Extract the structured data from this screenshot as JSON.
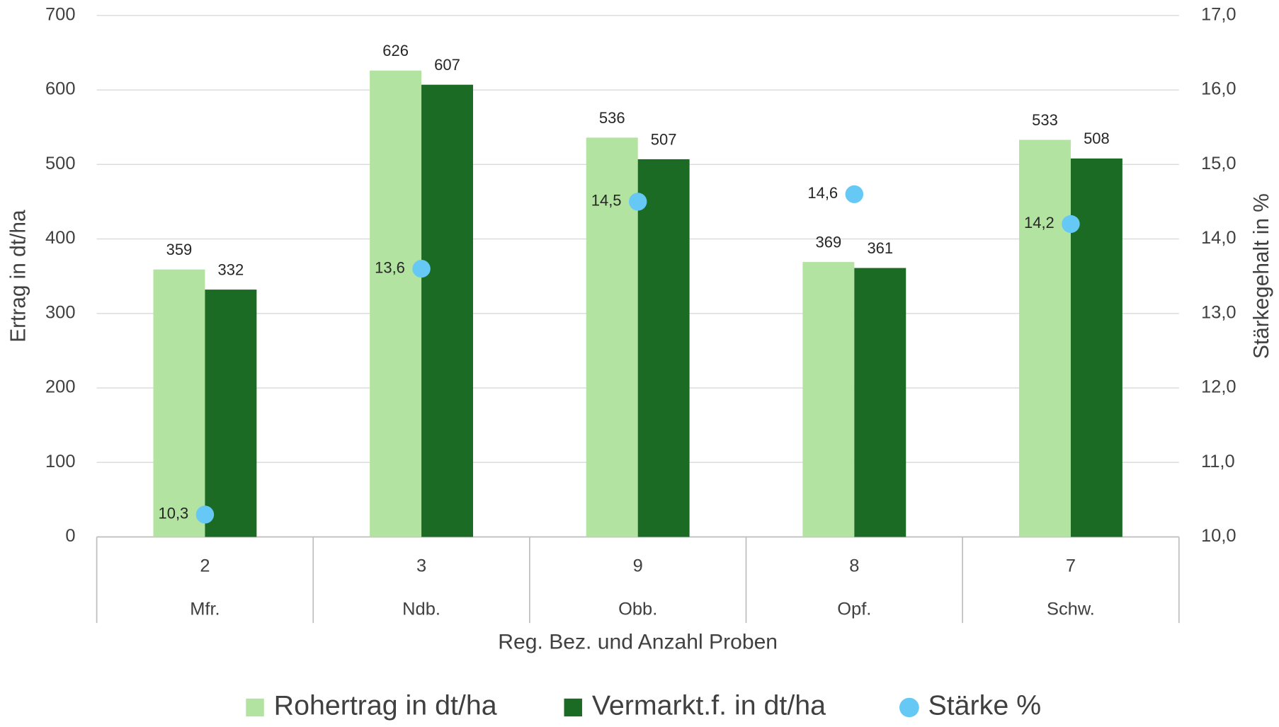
{
  "chart_data": {
    "type": "bar",
    "categories": [
      "2",
      "3",
      "9",
      "8",
      "7"
    ],
    "category_groups": [
      "Mfr.",
      "Ndb.",
      "Obb.",
      "Opf.",
      "Schw."
    ],
    "x_label": "Reg. Bez. und Anzahl Proben",
    "y_label": "Ertrag in dt/ha",
    "y2_label": "Stärkegehalt in %",
    "ylim": [
      0,
      700
    ],
    "yticks": [
      0,
      100,
      200,
      300,
      400,
      500,
      600,
      700
    ],
    "y2lim": [
      10,
      17
    ],
    "y2ticks": [
      {
        "value": 10,
        "label": "10,0"
      },
      {
        "value": 11,
        "label": "11,0"
      },
      {
        "value": 12,
        "label": "12,0"
      },
      {
        "value": 13,
        "label": "13,0"
      },
      {
        "value": 14,
        "label": "14,0"
      },
      {
        "value": 15,
        "label": "15,0"
      },
      {
        "value": 16,
        "label": "16,0"
      },
      {
        "value": 17,
        "label": "17,0"
      }
    ],
    "grid": true,
    "legend": "bottom",
    "series": [
      {
        "name": "Rohertrag in dt/ha",
        "color": "#b3e3a0",
        "values": [
          359,
          626,
          536,
          369,
          533
        ]
      },
      {
        "name": "Vermarkt.f. in dt/ha",
        "color": "#1b6b25",
        "values": [
          332,
          607,
          507,
          361,
          508
        ]
      },
      {
        "name": "Stärke %",
        "color": "#66c9f5",
        "type": "scatter",
        "axis": "y2",
        "values": [
          10.3,
          13.6,
          14.5,
          14.6,
          14.2
        ],
        "value_labels": [
          "10,3",
          "13,6",
          "14,5",
          "14,6",
          "14,2"
        ]
      }
    ]
  }
}
